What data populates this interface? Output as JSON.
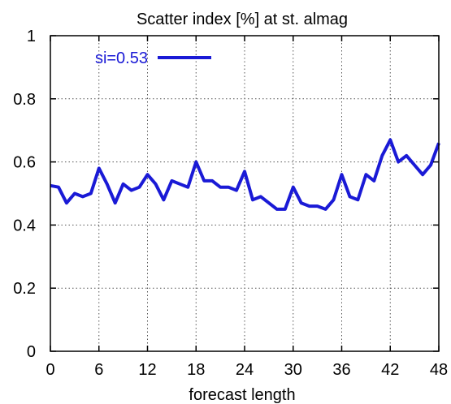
{
  "chart_data": {
    "type": "line",
    "title": "Scatter index [%] at st. almag",
    "xlabel": "forecast length",
    "ylabel": "",
    "xlim": [
      0,
      48
    ],
    "ylim": [
      0,
      1
    ],
    "xticks": [
      0,
      6,
      12,
      18,
      24,
      30,
      36,
      42,
      48
    ],
    "xtick_labels": [
      "0",
      "6",
      "12",
      "18",
      "24",
      "30",
      "36",
      "42",
      "48"
    ],
    "yticks": [
      0,
      0.2,
      0.4,
      0.6,
      0.8,
      1
    ],
    "ytick_labels": [
      "0",
      "0.2",
      "0.4",
      "0.6",
      "0.8",
      "1"
    ],
    "grid": true,
    "legend_position": "top-left",
    "series": [
      {
        "name": "si=0.53",
        "color": "#1a1ad6",
        "x": [
          0,
          1,
          2,
          3,
          4,
          5,
          6,
          7,
          8,
          9,
          10,
          11,
          12,
          13,
          14,
          15,
          16,
          17,
          18,
          19,
          20,
          21,
          22,
          23,
          24,
          25,
          26,
          27,
          28,
          29,
          30,
          31,
          32,
          33,
          34,
          35,
          36,
          37,
          38,
          39,
          40,
          41,
          42,
          43,
          44,
          45,
          46,
          47,
          48
        ],
        "y": [
          0.525,
          0.52,
          0.47,
          0.5,
          0.49,
          0.5,
          0.58,
          0.53,
          0.47,
          0.53,
          0.51,
          0.52,
          0.56,
          0.53,
          0.48,
          0.54,
          0.53,
          0.52,
          0.6,
          0.54,
          0.54,
          0.52,
          0.52,
          0.51,
          0.57,
          0.48,
          0.49,
          0.47,
          0.45,
          0.45,
          0.52,
          0.47,
          0.46,
          0.46,
          0.45,
          0.48,
          0.56,
          0.49,
          0.48,
          0.56,
          0.54,
          0.62,
          0.67,
          0.6,
          0.62,
          0.59,
          0.56,
          0.59,
          0.66
        ]
      }
    ]
  }
}
